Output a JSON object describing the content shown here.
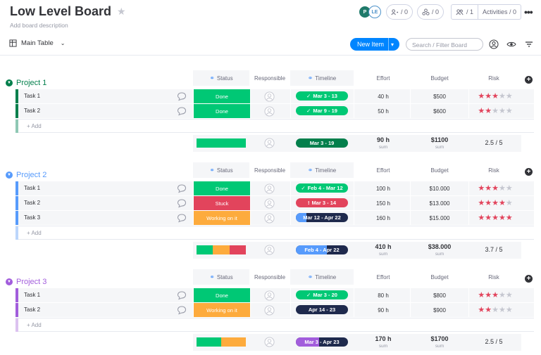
{
  "header": {
    "title": "Low Level Board",
    "description": "Add board description",
    "avatars": [
      "P",
      "LE"
    ],
    "invite_count": "/ 0",
    "integrate_count": "/ 0",
    "members_count": "/ 1",
    "activities_label": "Activities / 0"
  },
  "toolbar": {
    "view_label": "Main Table",
    "new_item_label": "New Item",
    "search_placeholder": "Search / Filter Board"
  },
  "columns": {
    "status": "Status",
    "responsible": "Responsible",
    "timeline": "Timeline",
    "effort": "Effort",
    "budget": "Budget",
    "risk": "Risk"
  },
  "colors": {
    "done": "#00c875",
    "stuck": "#e2445c",
    "working": "#fdab3d",
    "p1": "#037f4c",
    "p2": "#579bfc",
    "p3": "#a25ddc",
    "navy": "#1f2a4d"
  },
  "groups": [
    {
      "title": "Project 1",
      "color": "#037f4c",
      "title_color": "#037f4c",
      "add_label": "+ Add",
      "add_bar": "#8fc8b4",
      "rows": [
        {
          "name": "Task 1",
          "status": "Done",
          "status_color": "#00c875",
          "timeline": "Mar 3 - 13",
          "tl_color": "#00c875",
          "tl_icon": "check",
          "effort": "40 h",
          "budget": "$500",
          "risk": 3
        },
        {
          "name": "Task 2",
          "status": "Done",
          "status_color": "#00c875",
          "timeline": "Mar 9 - 19",
          "tl_color": "#00c875",
          "tl_icon": "check",
          "effort": "50 h",
          "budget": "$600",
          "risk": 2
        }
      ],
      "summary": {
        "status_mix": [
          {
            "color": "#00c875",
            "fraction": 1.0
          }
        ],
        "timeline": "Mar 3 - 19",
        "tl_color": "#037f4c",
        "tl_progress": 1.0,
        "effort": "90 h",
        "effort_label": "sum",
        "budget": "$1100",
        "budget_label": "sum",
        "risk": "2.5 / 5"
      }
    },
    {
      "title": "Project 2",
      "color": "#579bfc",
      "title_color": "#579bfc",
      "add_label": "+ Add",
      "add_bar": "#bcd6fb",
      "rows": [
        {
          "name": "Task 1",
          "status": "Done",
          "status_color": "#00c875",
          "timeline": "Feb 4 - Mar 12",
          "tl_color": "#00c875",
          "tl_icon": "check",
          "effort": "100 h",
          "budget": "$10.000",
          "risk": 3
        },
        {
          "name": "Task 2",
          "status": "Stuck",
          "status_color": "#e2445c",
          "timeline": "Mar 3 - 14",
          "tl_color": "#e2445c",
          "tl_icon": "alert",
          "effort": "150 h",
          "budget": "$13.000",
          "risk": 4
        },
        {
          "name": "Task 3",
          "status": "Working on it",
          "status_color": "#fdab3d",
          "timeline": "Mar 12 - Apr 22",
          "tl_color": "#1f2a4d",
          "tl_icon": "",
          "tl_progress": 0.2,
          "tl_progress_color": "#579bfc",
          "effort": "160 h",
          "budget": "$15.000",
          "risk": 5
        }
      ],
      "summary": {
        "status_mix": [
          {
            "color": "#00c875",
            "fraction": 0.33
          },
          {
            "color": "#fdab3d",
            "fraction": 0.34
          },
          {
            "color": "#e2445c",
            "fraction": 0.33
          }
        ],
        "timeline": "Feb 4 - Apr 22",
        "tl_color": "#1f2a4d",
        "tl_progress": 0.6,
        "tl_progress_color": "#579bfc",
        "effort": "410 h",
        "effort_label": "sum",
        "budget": "$38.000",
        "budget_label": "sum",
        "risk": "3.7 / 5"
      }
    },
    {
      "title": "Project 3",
      "color": "#a25ddc",
      "title_color": "#a25ddc",
      "add_label": "+ Add",
      "add_bar": "#dcc2f0",
      "rows": [
        {
          "name": "Task 1",
          "status": "Done",
          "status_color": "#00c875",
          "timeline": "Mar 3 - 20",
          "tl_color": "#00c875",
          "tl_icon": "check",
          "effort": "80 h",
          "budget": "$800",
          "risk": 3
        },
        {
          "name": "Task 2",
          "status": "Working on it",
          "status_color": "#fdab3d",
          "timeline": "Apr 14 - 23",
          "tl_color": "#1f2a4d",
          "tl_icon": "",
          "effort": "90 h",
          "budget": "$900",
          "risk": 2
        }
      ],
      "summary": {
        "status_mix": [
          {
            "color": "#00c875",
            "fraction": 0.5
          },
          {
            "color": "#fdab3d",
            "fraction": 0.5
          }
        ],
        "timeline": "Mar 3 - Apr 23",
        "tl_color": "#1f2a4d",
        "tl_progress": 0.45,
        "tl_progress_color": "#a25ddc",
        "effort": "170 h",
        "effort_label": "sum",
        "budget": "$1700",
        "budget_label": "sum",
        "risk": "2.5 / 5"
      }
    }
  ]
}
